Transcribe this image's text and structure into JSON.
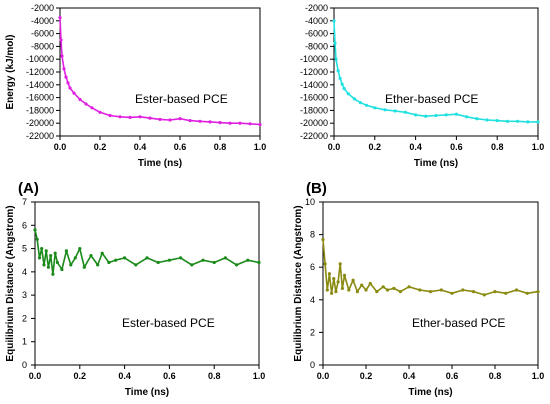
{
  "chart_data": [
    {
      "type": "line",
      "panel_label": "",
      "annotation": "Ester-based PCE",
      "xlabel": "Time (ns)",
      "ylabel": "Energy (kJ/mol)",
      "xlim": [
        0,
        1.0
      ],
      "ylim": [
        -22000,
        -2000
      ],
      "xticks": [
        "0.0",
        "0.2",
        "0.4",
        "0.6",
        "0.8",
        "1.0"
      ],
      "yticks": [
        "-2000",
        "-4000",
        "-6000",
        "-8000",
        "-10000",
        "-12000",
        "-14000",
        "-16000",
        "-18000",
        "-20000",
        "-22000"
      ],
      "color": "#E020E0",
      "series": [
        {
          "x": [
            0.0,
            0.005,
            0.01,
            0.02,
            0.03,
            0.04,
            0.05,
            0.07,
            0.1,
            0.13,
            0.16,
            0.2,
            0.25,
            0.3,
            0.35,
            0.4,
            0.45,
            0.5,
            0.55,
            0.6,
            0.65,
            0.7,
            0.75,
            0.8,
            0.85,
            0.9,
            0.95,
            1.0
          ],
          "y": [
            -3500,
            -7000,
            -9500,
            -11500,
            -12800,
            -13700,
            -14500,
            -15300,
            -16300,
            -17000,
            -17600,
            -18300,
            -18800,
            -19000,
            -19100,
            -19000,
            -19200,
            -19400,
            -19500,
            -19300,
            -19600,
            -19700,
            -19800,
            -19900,
            -20000,
            -20000,
            -20100,
            -20200
          ]
        }
      ]
    },
    {
      "type": "line",
      "panel_label": "",
      "annotation": "Ether-based PCE",
      "xlabel": "Time (ns)",
      "ylabel": "",
      "xlim": [
        0,
        1.0
      ],
      "ylim": [
        -22000,
        -2000
      ],
      "xticks": [
        "0.0",
        "0.2",
        "0.4",
        "0.6",
        "0.8",
        "1.0"
      ],
      "yticks": [
        "-2000",
        "-4000",
        "-6000",
        "-8000",
        "-10000",
        "-12000",
        "-14000",
        "-16000",
        "-18000",
        "-20000",
        "-22000"
      ],
      "color": "#20E0E0",
      "series": [
        {
          "x": [
            0.0,
            0.005,
            0.01,
            0.02,
            0.03,
            0.04,
            0.05,
            0.07,
            0.1,
            0.13,
            0.16,
            0.2,
            0.25,
            0.3,
            0.35,
            0.4,
            0.45,
            0.5,
            0.55,
            0.6,
            0.65,
            0.7,
            0.75,
            0.8,
            0.85,
            0.9,
            0.95,
            1.0
          ],
          "y": [
            -4000,
            -7500,
            -10000,
            -11800,
            -13000,
            -13900,
            -14600,
            -15400,
            -16200,
            -16800,
            -17200,
            -17600,
            -17900,
            -18100,
            -18300,
            -18700,
            -18900,
            -18800,
            -18700,
            -18600,
            -19000,
            -19300,
            -19500,
            -19600,
            -19700,
            -19700,
            -19800,
            -19800
          ]
        }
      ]
    },
    {
      "type": "line",
      "panel_label": "(A)",
      "annotation": "Ester-based PCE",
      "xlabel": "Time (ns)",
      "ylabel": "Equilibrium Distance (Angstrom)",
      "xlim": [
        0,
        1.0
      ],
      "ylim": [
        0,
        7
      ],
      "xticks": [
        "0.0",
        "0.2",
        "0.4",
        "0.6",
        "0.8",
        "1.0"
      ],
      "yticks": [
        "0",
        "1",
        "2",
        "3",
        "4",
        "5",
        "6",
        "7"
      ],
      "color": "#1A8A1A",
      "series": [
        {
          "x": [
            0.0,
            0.01,
            0.02,
            0.03,
            0.04,
            0.05,
            0.06,
            0.07,
            0.08,
            0.09,
            0.1,
            0.12,
            0.14,
            0.16,
            0.18,
            0.2,
            0.22,
            0.25,
            0.28,
            0.3,
            0.33,
            0.36,
            0.4,
            0.45,
            0.5,
            0.55,
            0.6,
            0.65,
            0.7,
            0.75,
            0.8,
            0.85,
            0.9,
            0.95,
            1.0
          ],
          "y": [
            5.8,
            5.4,
            4.6,
            5.0,
            4.3,
            4.9,
            4.2,
            4.7,
            3.9,
            4.8,
            4.4,
            4.1,
            4.9,
            4.3,
            4.6,
            5.0,
            4.2,
            4.7,
            4.3,
            4.8,
            4.4,
            4.5,
            4.6,
            4.3,
            4.6,
            4.4,
            4.5,
            4.6,
            4.3,
            4.5,
            4.4,
            4.6,
            4.3,
            4.5,
            4.4
          ]
        }
      ]
    },
    {
      "type": "line",
      "panel_label": "(B)",
      "annotation": "Ether-based PCE",
      "xlabel": "Time (ns)",
      "ylabel": "Equilibrium Distance (Angstrom)",
      "xlim": [
        0,
        1.0
      ],
      "ylim": [
        0,
        10
      ],
      "xticks": [
        "0.0",
        "0.2",
        "0.4",
        "0.6",
        "0.8",
        "1.0"
      ],
      "yticks": [
        "0",
        "2",
        "4",
        "6",
        "8",
        "10"
      ],
      "color": "#8A8A10",
      "series": [
        {
          "x": [
            0.0,
            0.01,
            0.02,
            0.03,
            0.04,
            0.05,
            0.06,
            0.07,
            0.08,
            0.09,
            0.1,
            0.12,
            0.14,
            0.16,
            0.18,
            0.2,
            0.22,
            0.25,
            0.28,
            0.3,
            0.33,
            0.36,
            0.4,
            0.45,
            0.5,
            0.55,
            0.6,
            0.65,
            0.7,
            0.75,
            0.8,
            0.85,
            0.9,
            0.95,
            1.0
          ],
          "y": [
            7.7,
            6.2,
            4.6,
            5.6,
            4.4,
            5.3,
            4.5,
            5.1,
            6.2,
            4.7,
            5.5,
            4.6,
            5.2,
            4.5,
            4.9,
            4.6,
            5.0,
            4.5,
            4.8,
            4.6,
            4.7,
            4.5,
            4.8,
            4.6,
            4.5,
            4.6,
            4.4,
            4.6,
            4.5,
            4.3,
            4.5,
            4.4,
            4.6,
            4.4,
            4.5
          ]
        }
      ]
    }
  ]
}
